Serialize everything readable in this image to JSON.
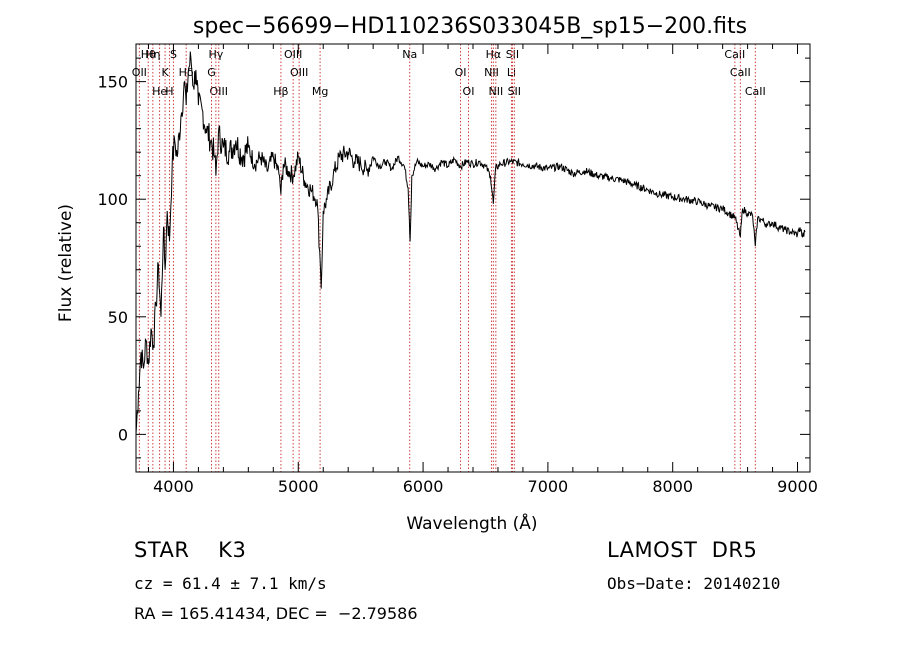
{
  "chart_data": {
    "type": "line",
    "title": "spec−56699−HD110236S033045B_sp15−200.fits",
    "xlabel": "Wavelength (Å)",
    "ylabel": "Flux (relative)",
    "xlim": [
      3700,
      9100
    ],
    "ylim": [
      -16,
      166
    ],
    "xticks": [
      4000,
      5000,
      6000,
      7000,
      8000,
      9000
    ],
    "yticks": [
      0,
      50,
      100,
      150
    ],
    "grid": false,
    "line_color": "#000000",
    "marker_color": "#d04040",
    "series": [
      {
        "x": [
          3700,
          3720,
          3740,
          3760,
          3780,
          3800,
          3820,
          3840,
          3860,
          3880,
          3900,
          3920,
          3933,
          3950,
          3968,
          3990,
          4010,
          4030,
          4060,
          4090,
          4102,
          4120,
          4140,
          4160,
          4180,
          4200,
          4230,
          4260,
          4300,
          4330,
          4340,
          4360,
          4400,
          4450,
          4500,
          4550,
          4600,
          4650,
          4700,
          4750,
          4800,
          4850,
          4861,
          4880,
          4920,
          4960,
          5000,
          5050,
          5100,
          5150,
          5172,
          5184,
          5200,
          5230,
          5280,
          5330,
          5400,
          5450,
          5500,
          5550,
          5600,
          5650,
          5700,
          5750,
          5800,
          5850,
          5880,
          5890,
          5896,
          5910,
          5950,
          6000,
          6050,
          6100,
          6150,
          6200,
          6250,
          6300,
          6350,
          6400,
          6450,
          6500,
          6540,
          6563,
          6580,
          6620,
          6700,
          6800,
          6900,
          7000,
          7100,
          7200,
          7300,
          7400,
          7500,
          7600,
          7700,
          7800,
          7900,
          8000,
          8100,
          8200,
          8300,
          8400,
          8450,
          8500,
          8542,
          8560,
          8600,
          8640,
          8662,
          8680,
          8720,
          8760,
          8800,
          8850,
          8900,
          8950,
          9000,
          9020,
          9040,
          9060
        ],
        "y": [
          0,
          18,
          35,
          28,
          40,
          30,
          45,
          38,
          55,
          72,
          50,
          88,
          70,
          95,
          82,
          115,
          125,
          118,
          135,
          150,
          140,
          155,
          160,
          148,
          155,
          140,
          138,
          130,
          125,
          118,
          110,
          128,
          122,
          120,
          125,
          118,
          122,
          115,
          118,
          112,
          118,
          110,
          102,
          115,
          112,
          110,
          118,
          108,
          104,
          100,
          78,
          62,
          95,
          100,
          110,
          118,
          120,
          116,
          115,
          112,
          118,
          114,
          116,
          113,
          118,
          114,
          105,
          92,
          82,
          110,
          116,
          114,
          115,
          113,
          116,
          114,
          117,
          114,
          116,
          115,
          116,
          114,
          110,
          98,
          113,
          115,
          116,
          115,
          114,
          113,
          114,
          111,
          112,
          110,
          109,
          108,
          106,
          104,
          102,
          101,
          100,
          99,
          97,
          96,
          94,
          92,
          84,
          96,
          94,
          93,
          80,
          92,
          91,
          89,
          90,
          88,
          87,
          86,
          85,
          88,
          84,
          86
        ]
      }
    ],
    "line_markers": [
      {
        "label": "Hθ",
        "x": 3798
      },
      {
        "label": "OII",
        "x": 3727
      },
      {
        "label": "He",
        "x": 3889
      },
      {
        "label": "Hη",
        "x": 3835
      },
      {
        "label": "K",
        "x": 3933
      },
      {
        "label": "H",
        "x": 3968
      },
      {
        "label": "S",
        "x": 4000
      },
      {
        "label": "Hδ",
        "x": 4102
      },
      {
        "label": "OIII",
        "x": 4363
      },
      {
        "label": "Hγ",
        "x": 4340
      },
      {
        "label": "G",
        "x": 4305
      },
      {
        "label": "Hβ",
        "x": 4861
      },
      {
        "label": "OIII",
        "x": 4959
      },
      {
        "label": "OIII",
        "x": 5007
      },
      {
        "label": "Mg",
        "x": 5175
      },
      {
        "label": "Na",
        "x": 5893
      },
      {
        "label": "OI",
        "x": 6300
      },
      {
        "label": "OI",
        "x": 6364
      },
      {
        "label": "Hα",
        "x": 6563
      },
      {
        "label": "NII",
        "x": 6548
      },
      {
        "label": "NII",
        "x": 6583
      },
      {
        "label": "SII",
        "x": 6716
      },
      {
        "label": "Li",
        "x": 6708
      },
      {
        "label": "SII",
        "x": 6731
      },
      {
        "label": "CaII",
        "x": 8498
      },
      {
        "label": "CaII",
        "x": 8542
      },
      {
        "label": "CaII",
        "x": 8662
      }
    ]
  },
  "info": {
    "class_line": "STAR    K3",
    "survey_line": "LAMOST  DR5",
    "cz_line": "cz = 61.4 ± 7.1 km/s",
    "obs_line": "Obs−Date: 20140210",
    "radec_line": "RA = 165.41434, DEC =  −2.79586"
  }
}
